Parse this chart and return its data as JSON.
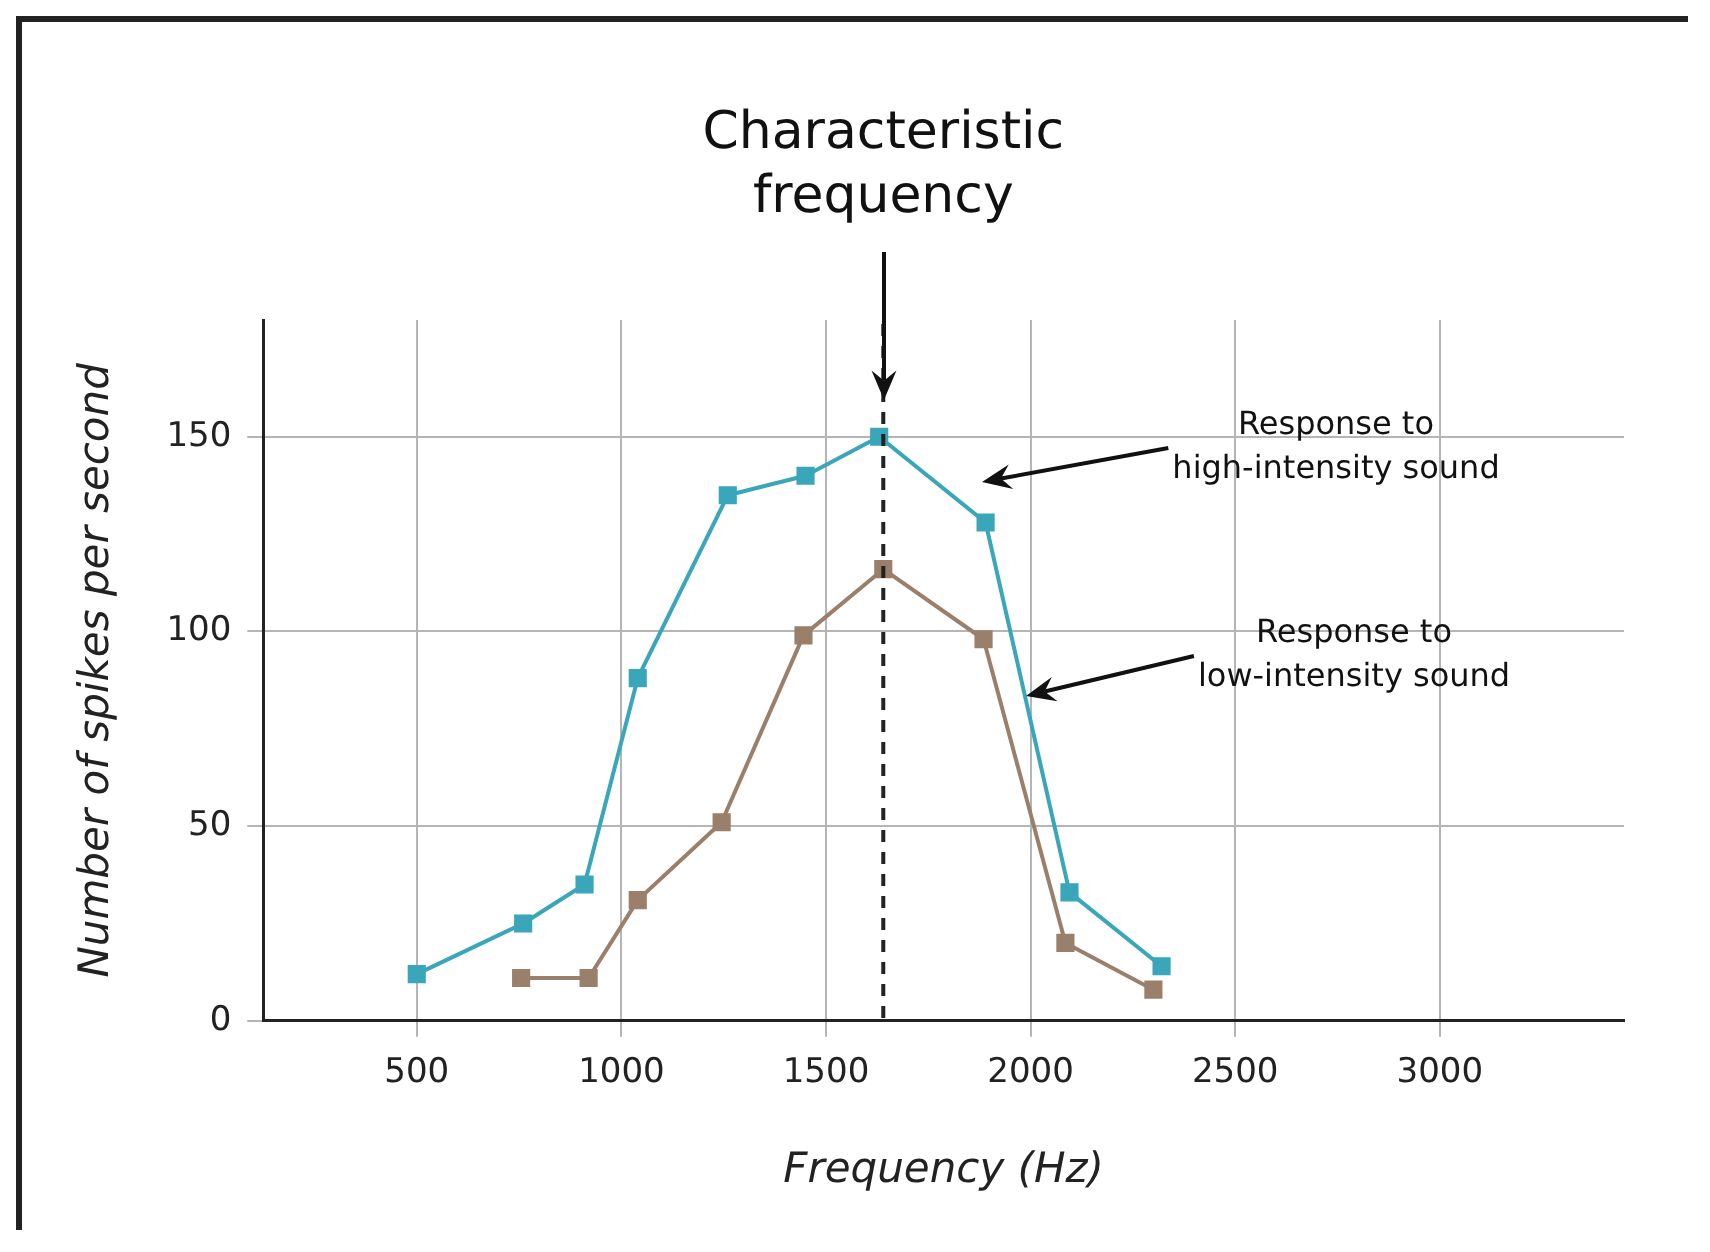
{
  "chart_data": {
    "type": "line",
    "xlabel": "Frequency (Hz)",
    "ylabel": "Number of spikes per second",
    "xlim": [
      125,
      3450
    ],
    "xticks": [
      500,
      1000,
      1500,
      2000,
      2500,
      3000
    ],
    "ylim": [
      0,
      180
    ],
    "yticks": [
      0,
      50,
      100,
      150
    ],
    "grid": true,
    "marker": "square",
    "line_style": "solid",
    "legend": false,
    "series": [
      {
        "color": "#3aa6b9",
        "x": [
          500,
          760,
          910,
          1040,
          1260,
          1450,
          1630,
          1890,
          2095,
          2320
        ],
        "values": [
          12,
          25,
          35,
          88,
          135,
          140,
          150,
          128,
          33,
          14
        ]
      },
      {
        "color": "#9a7f6b",
        "x": [
          755,
          920,
          1040,
          1245,
          1445,
          1640,
          1885,
          2085,
          2300
        ],
        "values": [
          11,
          11,
          31,
          51,
          99,
          116,
          98,
          20,
          8
        ]
      }
    ],
    "ref_lines": [
      {
        "axis": "x",
        "value": 1640,
        "label": "Characteristic frequency",
        "line_style": "dashed",
        "color": "#222222"
      }
    ],
    "annotations": [
      "Response to high-intensity sound",
      "Response to low-intensity sound"
    ]
  }
}
